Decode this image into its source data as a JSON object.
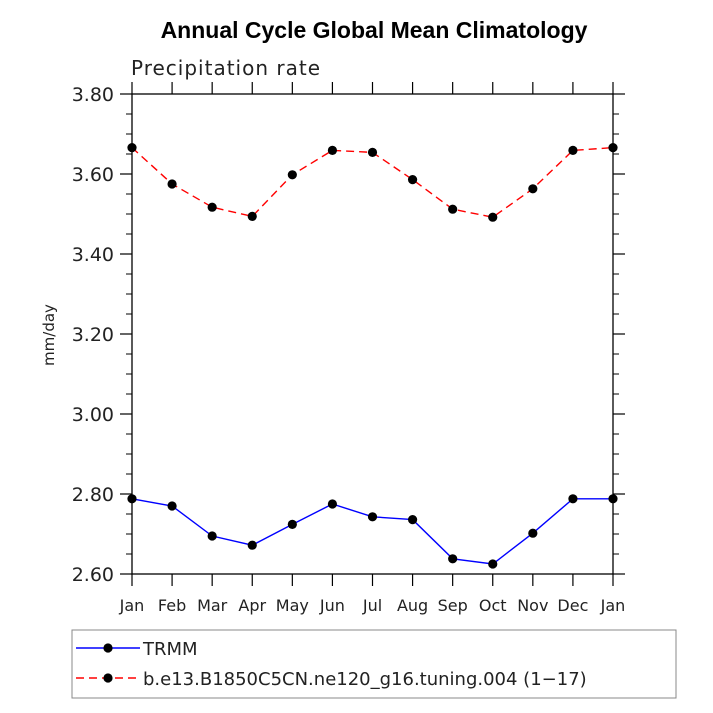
{
  "chart_data": {
    "type": "line",
    "title": "Annual Cycle Global Mean Climatology",
    "subtitle": "Precipitation rate",
    "xlabel": "",
    "ylabel": "mm/day",
    "ylim": [
      2.6,
      3.8
    ],
    "y_ticks": [
      "2.60",
      "2.80",
      "3.00",
      "3.20",
      "3.40",
      "3.60",
      "3.80"
    ],
    "categories": [
      "Jan",
      "Feb",
      "Mar",
      "Apr",
      "May",
      "Jun",
      "Jul",
      "Aug",
      "Sep",
      "Oct",
      "Nov",
      "Dec",
      "Jan"
    ],
    "grid": false,
    "legend_position": "bottom",
    "series": [
      {
        "name": "TRMM",
        "color": "#0000ff",
        "dash": "solid",
        "values": [
          2.788,
          2.77,
          2.695,
          2.672,
          2.724,
          2.775,
          2.743,
          2.736,
          2.638,
          2.625,
          2.702,
          2.788,
          2.788
        ]
      },
      {
        "name": "b.e13.B1850C5CN.ne120_g16.tuning.004 (1−17)",
        "color": "#ff0000",
        "dash": "dashed",
        "values": [
          3.666,
          3.575,
          3.517,
          3.494,
          3.598,
          3.659,
          3.654,
          3.586,
          3.512,
          3.492,
          3.563,
          3.659,
          3.666
        ]
      }
    ]
  }
}
